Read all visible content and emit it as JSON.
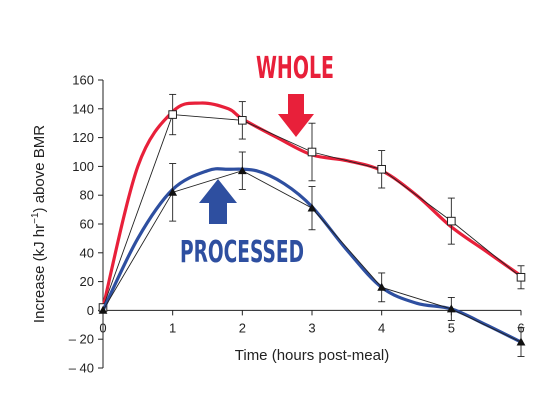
{
  "chart_data": {
    "type": "line",
    "xlabel": "Time (hours post-meal)",
    "ylabel_prefix": "Increase (kJ hr",
    "ylabel_sup": "−1",
    "ylabel_suffix": ") above BMR",
    "xlim": [
      0,
      6
    ],
    "ylim": [
      -40,
      160
    ],
    "x_ticks": [
      "0",
      "1",
      "2",
      "3",
      "4",
      "5",
      "6"
    ],
    "y_ticks": [
      "160",
      "140",
      "120",
      "100",
      "80",
      "60",
      "40",
      "20",
      "0",
      "– 20",
      "– 40"
    ],
    "grid": false,
    "series": [
      {
        "name": "WHOLE",
        "marker": "open-square",
        "color": "#e8203a",
        "x": [
          0,
          1,
          2,
          3,
          4,
          5,
          6
        ],
        "values": [
          2,
          136,
          132,
          110,
          98,
          62,
          23
        ],
        "error": [
          0,
          14,
          13,
          20,
          13,
          16,
          8
        ],
        "smooth_curve": [
          [
            0,
            2
          ],
          [
            0.5,
            100
          ],
          [
            1,
            138
          ],
          [
            1.4,
            144
          ],
          [
            1.8,
            140
          ],
          [
            2,
            133
          ],
          [
            2.5,
            120
          ],
          [
            3,
            108
          ],
          [
            3.5,
            104
          ],
          [
            4,
            97
          ],
          [
            4.5,
            80
          ],
          [
            5,
            58
          ],
          [
            5.5,
            41
          ],
          [
            6,
            24
          ]
        ]
      },
      {
        "name": "PROCESSED",
        "marker": "filled-triangle",
        "color": "#2e4fa0",
        "x": [
          0,
          1,
          2,
          3,
          4,
          5,
          6
        ],
        "values": [
          0,
          82,
          97,
          71,
          16,
          1,
          -22
        ],
        "error": [
          0,
          20,
          13,
          15,
          10,
          8,
          10
        ],
        "smooth_curve": [
          [
            0,
            0
          ],
          [
            0.5,
            50
          ],
          [
            1,
            84
          ],
          [
            1.5,
            97
          ],
          [
            1.8,
            98
          ],
          [
            2.2,
            97
          ],
          [
            2.6,
            88
          ],
          [
            3,
            72
          ],
          [
            3.5,
            42
          ],
          [
            4,
            16
          ],
          [
            4.5,
            5
          ],
          [
            5,
            1
          ],
          [
            5.5,
            -10
          ],
          [
            6,
            -22
          ]
        ]
      }
    ],
    "annotations": [
      {
        "label": "WHOLE",
        "color": "#e8203a",
        "arrow": "down"
      },
      {
        "label": "PROCESSED",
        "color": "#2e4fa0",
        "arrow": "up"
      }
    ]
  }
}
